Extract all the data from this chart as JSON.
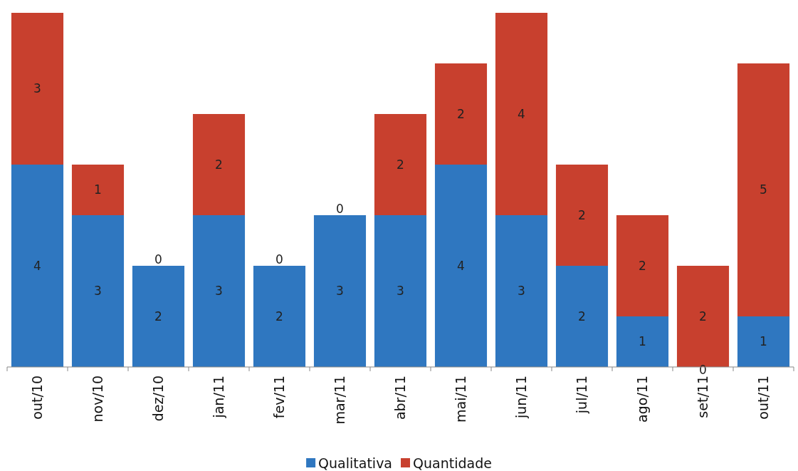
{
  "chart_data": {
    "type": "bar",
    "stacked": true,
    "legend": "bottom",
    "categories": [
      "out/10",
      "nov/10",
      "dez/10",
      "jan/11",
      "fev/11",
      "mar/11",
      "abr/11",
      "mai/11",
      "jun/11",
      "jul/11",
      "ago/11",
      "set/11",
      "out/11"
    ],
    "series": [
      {
        "name": "Qualitativa",
        "color": "#2f77c0",
        "values": [
          4,
          3,
          2,
          3,
          2,
          3,
          3,
          4,
          3,
          2,
          1,
          0,
          1
        ],
        "value_labels": [
          "4",
          "3",
          "2",
          "3",
          "2",
          "3",
          "3",
          "4",
          "3",
          "2",
          "1",
          null,
          "1"
        ]
      },
      {
        "name": "Quantidade",
        "color": "#c8402e",
        "values": [
          3,
          1,
          0,
          2,
          0,
          0,
          2,
          2,
          4,
          2,
          2,
          2,
          5
        ],
        "value_labels": [
          "3",
          "1",
          "0",
          "2",
          "0",
          "0",
          "2",
          "2",
          "4",
          "2",
          "2",
          "2",
          "5"
        ]
      }
    ],
    "annotations": [
      {
        "text": "0",
        "x": "set/11",
        "y": 0
      }
    ]
  }
}
